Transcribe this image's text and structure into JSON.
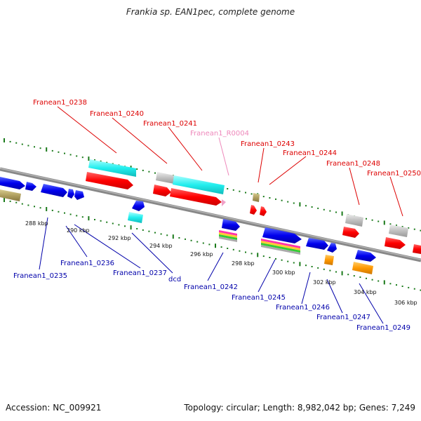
{
  "title": "Frankia sp. EAN1pec, complete genome",
  "footer": {
    "accession": "Accession: NC_009921",
    "summary": "Topology: circular; Length: 8,982,042 bp; Genes: 7,249"
  },
  "colors": {
    "red_label": "#dd0000",
    "blue_label": "#0000aa",
    "pink_label": "#ee88bb",
    "tick": "#1a7a1a",
    "backbone": "#888888",
    "gene_red": "#ff0000",
    "gene_blue": "#0000ee",
    "gene_cyan": "#22eeee",
    "gene_gray": "#c0c0c0",
    "gene_olive": "#b0a060",
    "gene_orange": "#ff9900"
  },
  "kbp_labels": [
    "288 kbp",
    "290 kbp",
    "292 kbp",
    "294 kbp",
    "296 kbp",
    "298 kbp",
    "300 kbp",
    "302 kbp",
    "304 kbp",
    "306 kbp"
  ],
  "top_labels": [
    {
      "text": "Franean1_0238",
      "color": "red"
    },
    {
      "text": "Franean1_0240",
      "color": "red"
    },
    {
      "text": "Franean1_0241",
      "color": "red"
    },
    {
      "text": "Franean1_R0004",
      "color": "pink"
    },
    {
      "text": "Franean1_0243",
      "color": "red"
    },
    {
      "text": "Franean1_0244",
      "color": "red"
    },
    {
      "text": "Franean1_0248",
      "color": "red"
    },
    {
      "text": "Franean1_0250",
      "color": "red"
    }
  ],
  "bottom_labels": [
    {
      "text": "Franean1_0235"
    },
    {
      "text": "Franean1_0236"
    },
    {
      "text": "Franean1_0237"
    },
    {
      "text": "dcd"
    },
    {
      "text": "Franean1_0242"
    },
    {
      "text": "Franean1_0245"
    },
    {
      "text": "Franean1_0246"
    },
    {
      "text": "Franean1_0247"
    },
    {
      "text": "Franean1_0249"
    }
  ]
}
